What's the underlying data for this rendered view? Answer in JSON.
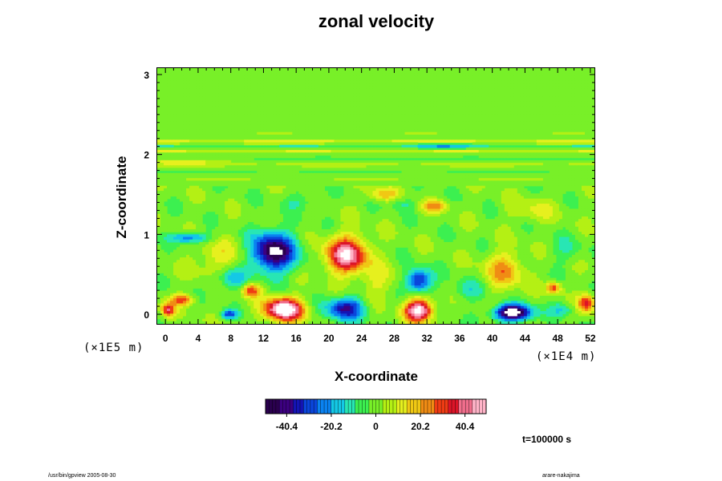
{
  "title": "zonal velocity",
  "footer": {
    "left": "/usr/bin/gpview 2005-08-30",
    "right": "arare-nakajima"
  },
  "time_label": "t=100000 s",
  "colors": {
    "palette": [
      "#2a004e",
      "#3c0080",
      "#1414b4",
      "#0a46dc",
      "#0a82f0",
      "#14c8e6",
      "#28e6b4",
      "#3cf050",
      "#78f028",
      "#b4f014",
      "#e6f01e",
      "#f0c814",
      "#f08c14",
      "#f03c14",
      "#dc1428",
      "#f06e8c",
      "#ffb4c8"
    ],
    "saturation_high": "#ffffff",
    "saturation_low": "#ffffff"
  },
  "chart_data": {
    "type": "heatmap",
    "title": "zonal velocity",
    "xlabel": "X-coordinate",
    "ylabel": "Z-coordinate",
    "x_scale_label": "(×1E4 m)",
    "y_scale_label": "(×1E5 m)",
    "xlim": [
      -1,
      52.5
    ],
    "ylim": [
      -0.12,
      3.08
    ],
    "x_ticks": [
      "0",
      "4",
      "8",
      "12",
      "16",
      "20",
      "24",
      "28",
      "32",
      "36",
      "40",
      "44",
      "48",
      "52"
    ],
    "y_ticks": [
      "0",
      "1",
      "2",
      "3"
    ],
    "colorbar": {
      "range": [
        -50,
        50
      ],
      "tick_labels": [
        "-40.4",
        "-20.2",
        "0",
        "20.2",
        "40.4"
      ]
    },
    "features": [
      {
        "x": 13.2,
        "z": 0.78,
        "value": -52,
        "sx": 1.9,
        "sz": 0.17
      },
      {
        "x": 22.2,
        "z": 0.74,
        "value": 48,
        "sx": 1.8,
        "sz": 0.16
      },
      {
        "x": 14.5,
        "z": 0.06,
        "value": 62,
        "sx": 1.6,
        "sz": 0.1
      },
      {
        "x": 22.0,
        "z": 0.07,
        "value": -38,
        "sx": 1.6,
        "sz": 0.1
      },
      {
        "x": 31.0,
        "z": 0.05,
        "value": 55,
        "sx": 1.2,
        "sz": 0.1
      },
      {
        "x": 42.5,
        "z": 0.02,
        "value": -60,
        "sx": 1.6,
        "sz": 0.07
      },
      {
        "x": 31.0,
        "z": 0.42,
        "value": -38,
        "sx": 1.1,
        "sz": 0.1
      },
      {
        "x": 41.5,
        "z": 0.55,
        "value": 22,
        "sx": 1.7,
        "sz": 0.16
      },
      {
        "x": 3.0,
        "z": 0.96,
        "value": -28,
        "sx": 1.6,
        "sz": 0.05
      },
      {
        "x": 6.5,
        "z": 0.7,
        "value": 12,
        "sx": 2.2,
        "sz": 0.18
      },
      {
        "x": 2.0,
        "z": 0.18,
        "value": 30,
        "sx": 1.0,
        "sz": 0.05
      },
      {
        "x": 0.3,
        "z": 0.05,
        "value": 35,
        "sx": 0.6,
        "sz": 0.06
      },
      {
        "x": 10.5,
        "z": 0.3,
        "value": 30,
        "sx": 0.8,
        "sz": 0.06
      },
      {
        "x": 8.0,
        "z": 0.45,
        "value": -20,
        "sx": 1.4,
        "sz": 0.1
      },
      {
        "x": 7.8,
        "z": 0.0,
        "value": -28,
        "sx": 0.7,
        "sz": 0.04
      },
      {
        "x": 47.5,
        "z": 0.33,
        "value": 32,
        "sx": 0.6,
        "sz": 0.05
      },
      {
        "x": 51.5,
        "z": 0.14,
        "value": 35,
        "sx": 0.7,
        "sz": 0.08
      },
      {
        "x": 48.5,
        "z": 0.06,
        "value": -15,
        "sx": 1.0,
        "sz": 0.06
      },
      {
        "x": 26.0,
        "z": 0.4,
        "value": 10,
        "sx": 1.5,
        "sz": 0.15
      },
      {
        "x": 37.0,
        "z": 0.3,
        "value": -12,
        "sx": 1.3,
        "sz": 0.1
      },
      {
        "x": 26.5,
        "z": 1.5,
        "value": 18,
        "sx": 1.3,
        "sz": 0.06
      },
      {
        "x": 33.0,
        "z": 1.35,
        "value": 22,
        "sx": 1.1,
        "sz": 0.05
      },
      {
        "x": 29.0,
        "z": 1.38,
        "value": -10,
        "sx": 1.0,
        "sz": 0.05
      },
      {
        "x": 16.5,
        "z": 1.42,
        "value": -8,
        "sx": 1.6,
        "sz": 0.08
      },
      {
        "x": 45.0,
        "z": 1.3,
        "value": 10,
        "sx": 2.0,
        "sz": 0.1
      },
      {
        "x": 49.0,
        "z": 0.8,
        "value": -8,
        "sx": 1.4,
        "sz": 0.12
      },
      {
        "x": 34.0,
        "z": 2.12,
        "value": -14,
        "sx": 3.0,
        "sz": 0.025
      },
      {
        "x": 2.0,
        "z": 1.92,
        "value": 12,
        "sx": 3.5,
        "sz": 0.03
      }
    ],
    "bands": [
      {
        "z": 2.16,
        "value": 15,
        "sz": 0.018
      },
      {
        "z": 2.1,
        "value": -10,
        "sz": 0.02
      },
      {
        "z": 2.04,
        "value": 10,
        "sz": 0.018
      },
      {
        "z": 1.95,
        "value": -7,
        "sz": 0.02
      },
      {
        "z": 1.87,
        "value": 6,
        "sz": 0.025
      },
      {
        "z": 1.78,
        "value": -5,
        "sz": 0.03
      },
      {
        "z": 1.7,
        "value": 4,
        "sz": 0.03
      },
      {
        "z": 2.25,
        "value": 4,
        "sz": 0.02
      }
    ]
  }
}
